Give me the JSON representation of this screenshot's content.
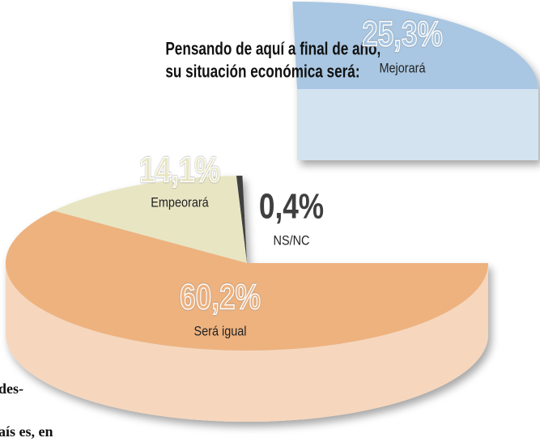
{
  "chart_data": {
    "type": "pie",
    "title": "Pensando de aquí a final de año, su situación económica será:",
    "categories": [
      "Mejorará",
      "NS/NC",
      "Empeorará",
      "Será igual"
    ],
    "values": [
      25.3,
      0.4,
      14.1,
      60.2
    ],
    "value_labels": [
      "25,3%",
      "0,4%",
      "14,1%",
      "60,2%"
    ],
    "colors": [
      "#a9c7e2",
      "#3f3f3f",
      "#e8e5c3",
      "#eeb27f"
    ],
    "side_colors": [
      "#d4e3f0",
      "#3f3f3f",
      "#d9d5ad",
      "#f6d7bd"
    ],
    "clipped_text": [
      "des-",
      "aís es, en"
    ]
  }
}
